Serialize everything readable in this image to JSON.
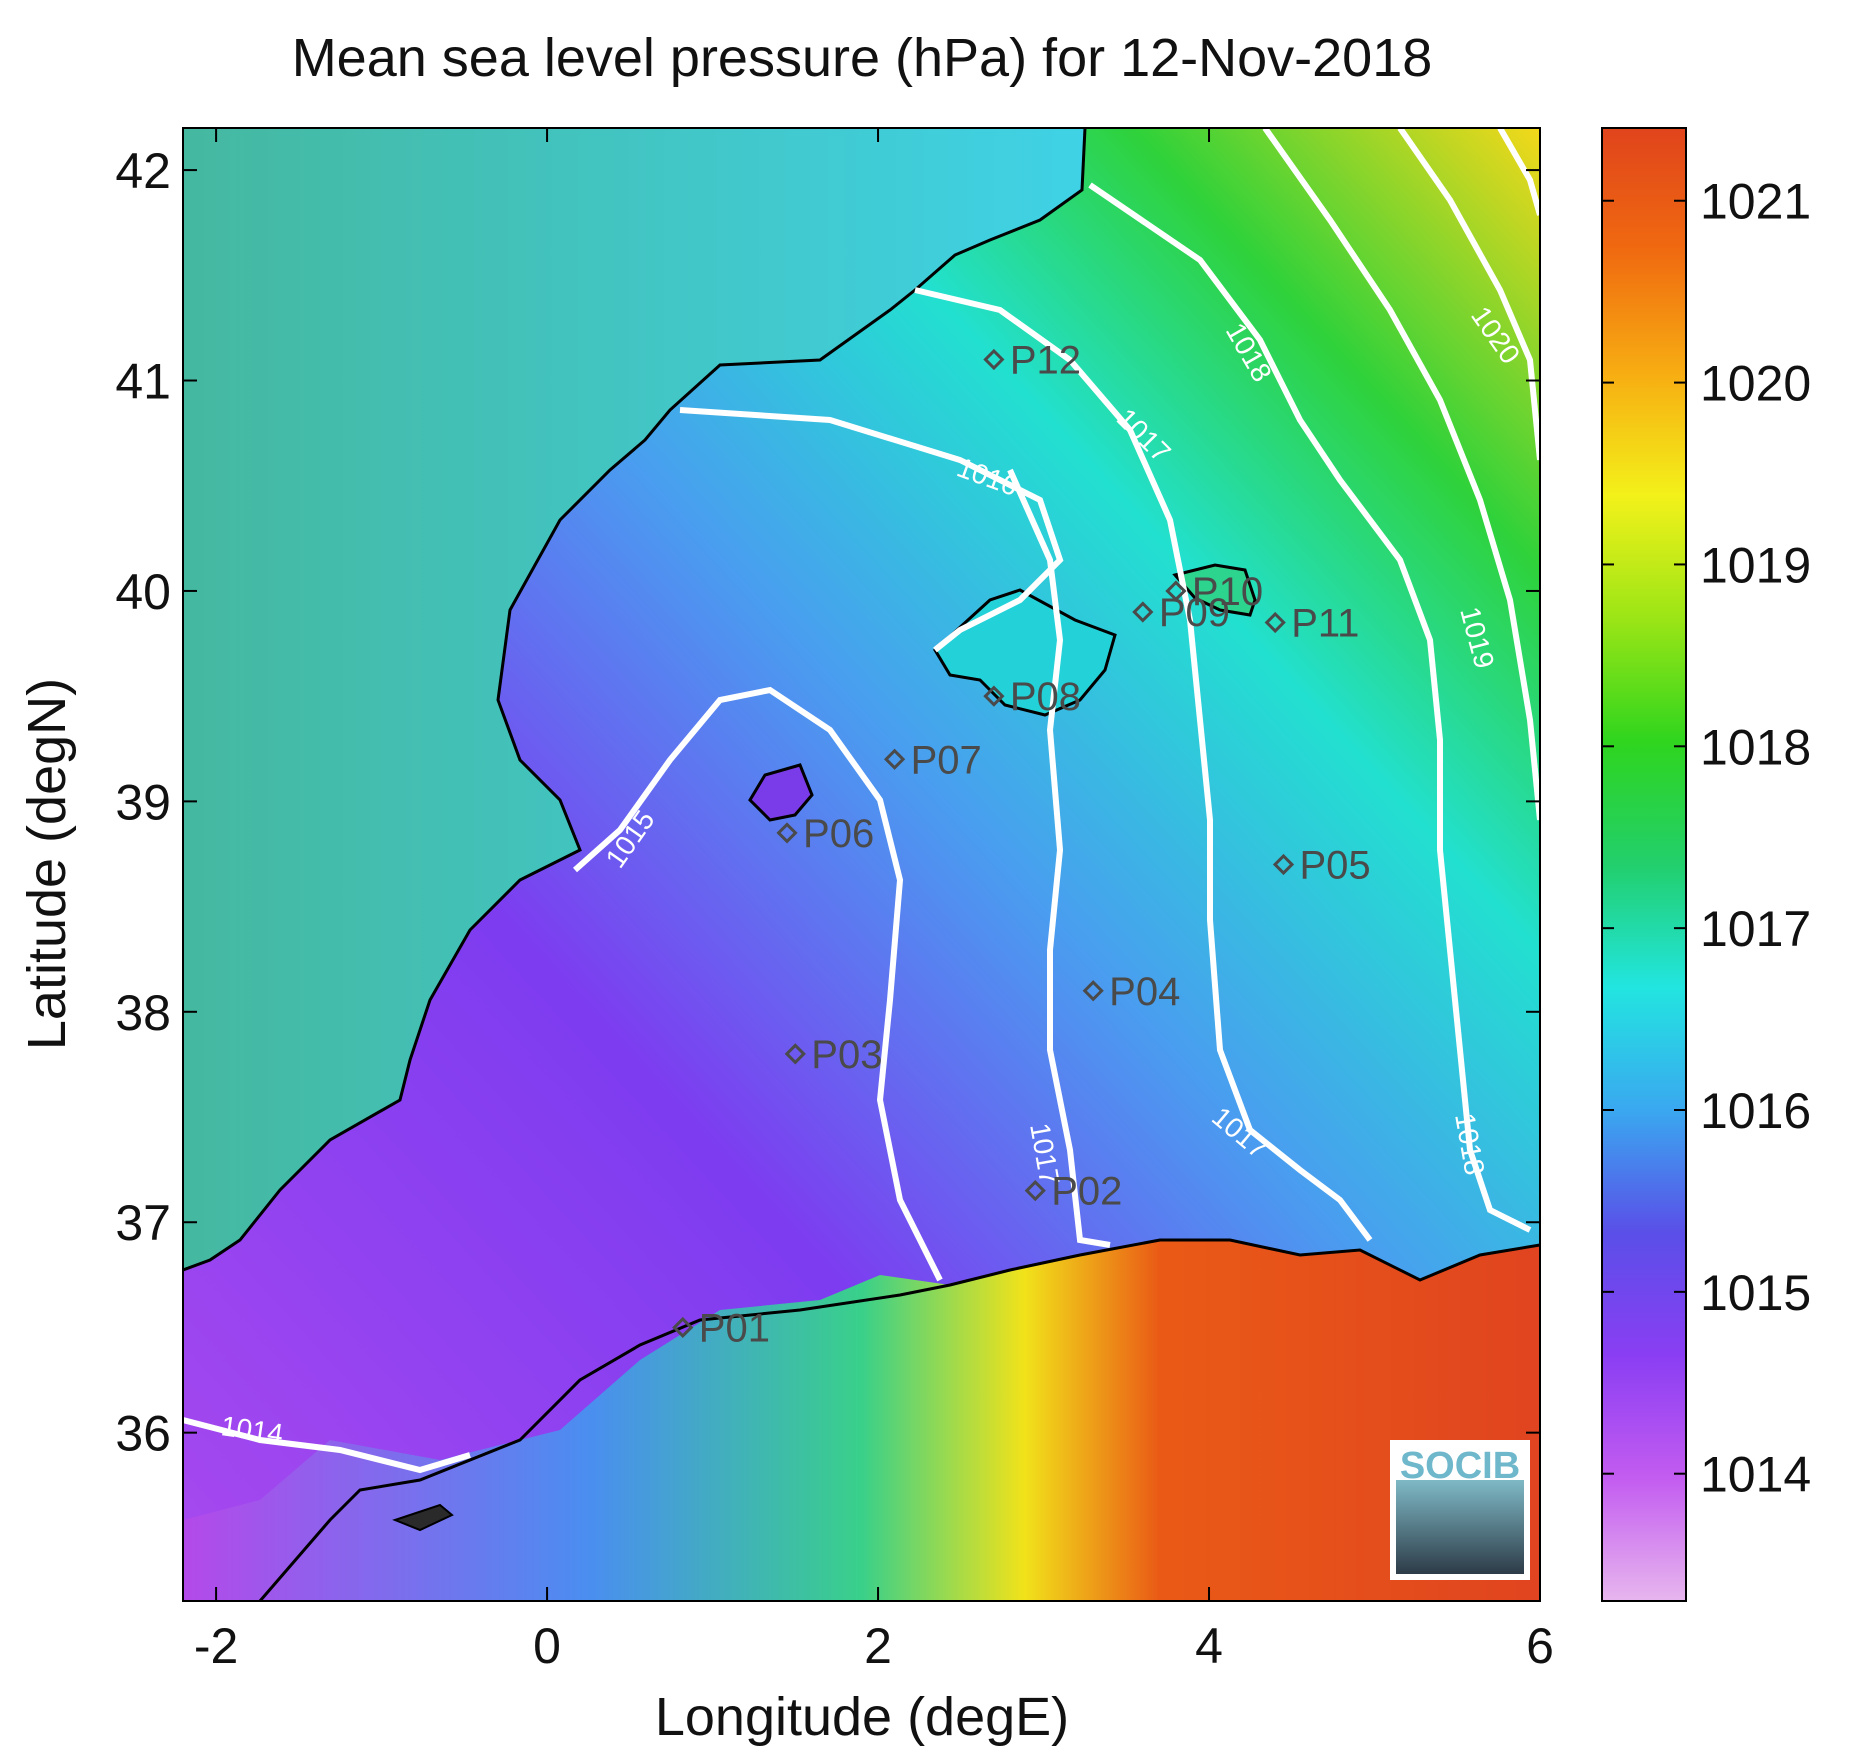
{
  "title": "Mean sea level pressure (hPa) for 12-Nov-2018",
  "axes": {
    "xlabel": "Longitude (degE)",
    "ylabel": "Latitude (degN)",
    "xlim": [
      -2.2,
      6.0
    ],
    "ylim": [
      35.2,
      42.2
    ],
    "xticks": [
      -2,
      0,
      2,
      4,
      6
    ],
    "yticks": [
      36,
      37,
      38,
      39,
      40,
      41,
      42
    ]
  },
  "colorbar": {
    "range": [
      1013.3,
      1021.4
    ],
    "ticks": [
      1014,
      1015,
      1016,
      1017,
      1018,
      1019,
      1020,
      1021
    ],
    "colormap": [
      "#e7b6ee",
      "#c35cf0",
      "#8a3ef3",
      "#5a4fe8",
      "#3aa8f0",
      "#22e5e0",
      "#22cf6c",
      "#2fd51e",
      "#9be516",
      "#f3f11a",
      "#f7ad12",
      "#f06a10",
      "#e0441c"
    ]
  },
  "contour_labels": [
    "1014",
    "1015",
    "1016",
    "1017",
    "1017",
    "1017",
    "1018",
    "1018",
    "1019",
    "1020"
  ],
  "stations": [
    {
      "id": "P01",
      "lon": 0.82,
      "lat": 36.5
    },
    {
      "id": "P02",
      "lon": 2.95,
      "lat": 37.15
    },
    {
      "id": "P03",
      "lon": 1.5,
      "lat": 37.8
    },
    {
      "id": "P04",
      "lon": 3.3,
      "lat": 38.1
    },
    {
      "id": "P05",
      "lon": 4.45,
      "lat": 38.7
    },
    {
      "id": "P06",
      "lon": 1.45,
      "lat": 38.85
    },
    {
      "id": "P07",
      "lon": 2.1,
      "lat": 39.2
    },
    {
      "id": "P08",
      "lon": 2.7,
      "lat": 39.5
    },
    {
      "id": "P09",
      "lon": 3.6,
      "lat": 39.9
    },
    {
      "id": "P10",
      "lon": 3.8,
      "lat": 40.0
    },
    {
      "id": "P11",
      "lon": 4.4,
      "lat": 39.85
    },
    {
      "id": "P12",
      "lon": 2.7,
      "lat": 41.1
    }
  ],
  "logo": {
    "text": "SOCIB"
  }
}
